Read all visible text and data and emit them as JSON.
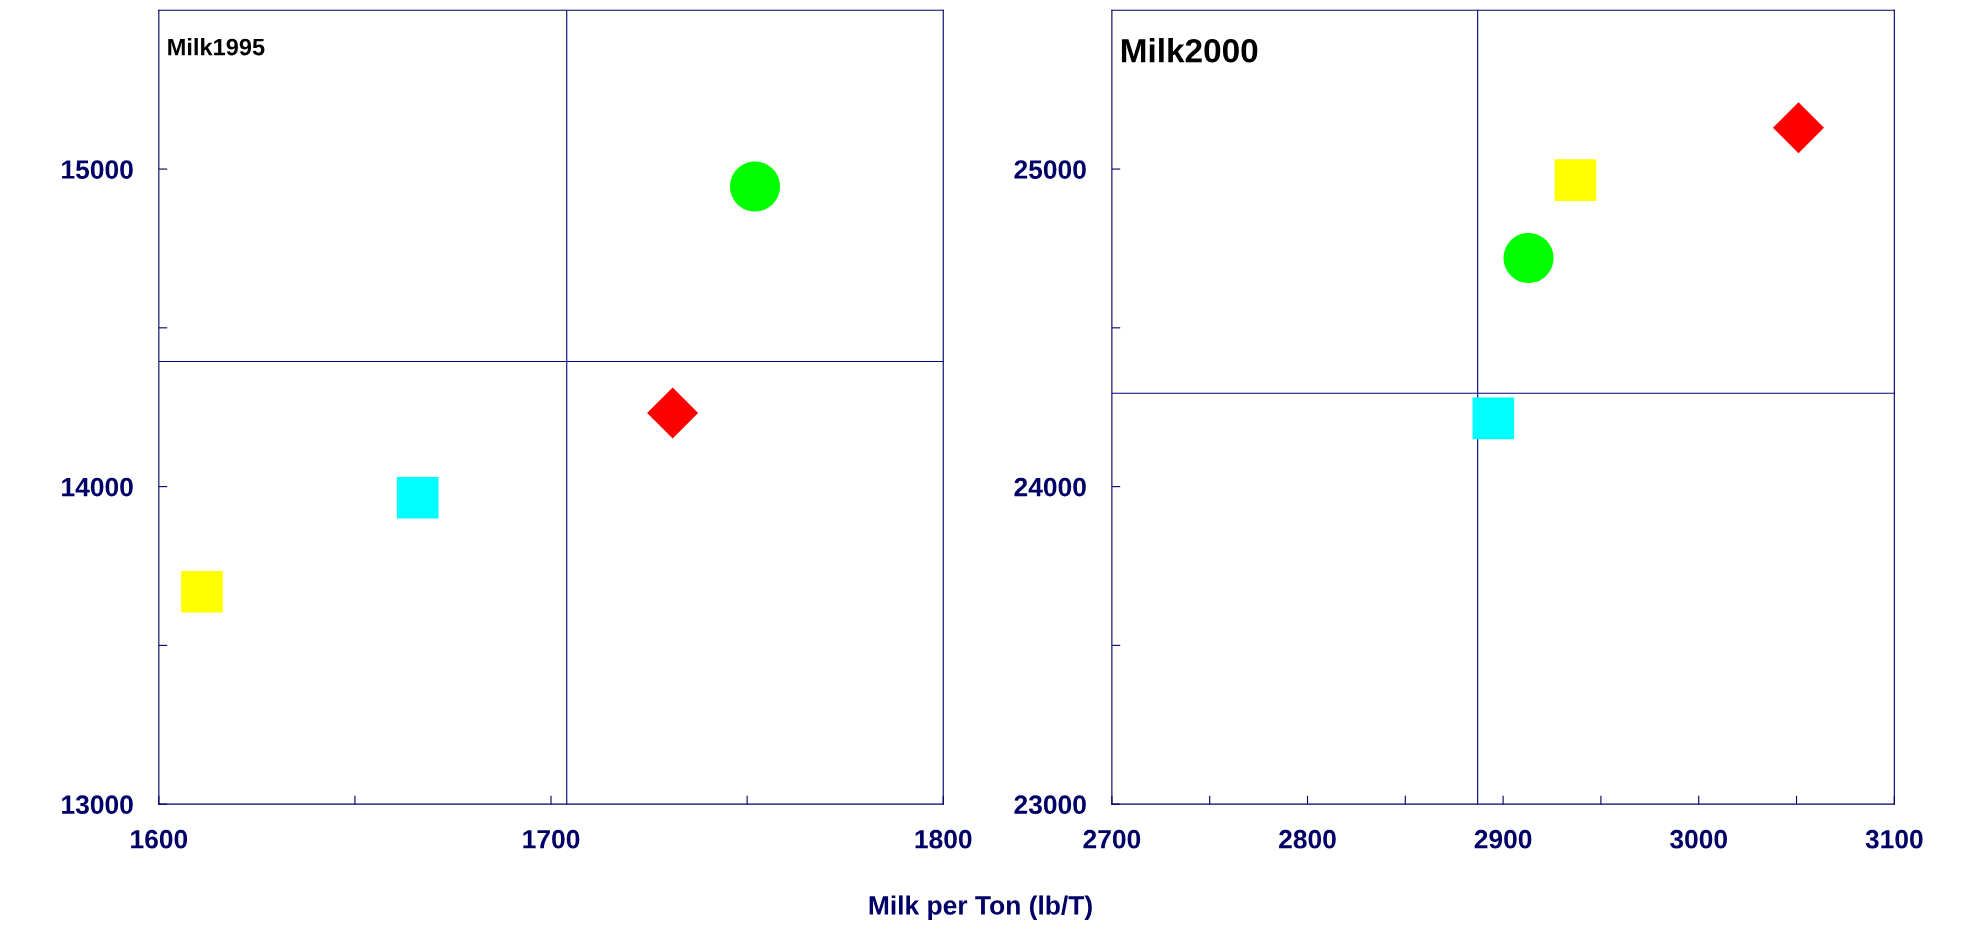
{
  "chart_data": [
    {
      "type": "scatter",
      "title": "Milk1995",
      "xlabel": "Milk per Ton (lb/T)",
      "xlim": [
        1600,
        1800
      ],
      "xticks": [
        1600,
        {
          "value": 1650,
          "label": null
        },
        1700,
        {
          "value": 1750,
          "label": null
        },
        1800
      ],
      "ylim": [
        13000,
        15500
      ],
      "yticks": [
        13000,
        {
          "value": 13500,
          "label": null
        },
        14000,
        {
          "value": 14500,
          "label": null
        },
        15000
      ],
      "ref_lines": [
        {
          "axis": "x",
          "value": 1704,
          "color": "#000080"
        },
        {
          "axis": "y",
          "value": 14394,
          "color": "#000080"
        }
      ],
      "series": [
        {
          "color": "#00ff00",
          "marker": "circle",
          "x": [
            1752
          ],
          "values": [
            14945
          ]
        },
        {
          "color": "#ff0000",
          "marker": "diamond",
          "x": [
            1731
          ],
          "values": [
            14232
          ]
        },
        {
          "color": "#00ffff",
          "marker": "square",
          "x": [
            1666
          ],
          "values": [
            13965
          ]
        },
        {
          "color": "#ffff00",
          "marker": "square",
          "x": [
            1611
          ],
          "values": [
            13669
          ]
        }
      ]
    },
    {
      "type": "scatter",
      "title": "Milk2000",
      "xlim": [
        2700,
        3100
      ],
      "xticks": [
        2700,
        {
          "value": 2750,
          "label": null
        },
        2800,
        {
          "value": 2850,
          "label": null
        },
        2900,
        {
          "value": 2950,
          "label": null
        },
        3000,
        {
          "value": 3050,
          "label": null
        },
        3100
      ],
      "ylim": [
        23000,
        25500
      ],
      "yticks": [
        23000,
        {
          "value": 23500,
          "label": null
        },
        24000,
        {
          "value": 24500,
          "label": null
        },
        25000
      ],
      "ref_lines": [
        {
          "axis": "x",
          "value": 2887,
          "color": "#000080"
        },
        {
          "axis": "y",
          "value": 24294,
          "color": "#000080"
        }
      ],
      "series": [
        {
          "color": "#ff0000",
          "marker": "diamond",
          "x": [
            3051
          ],
          "values": [
            25130
          ]
        },
        {
          "color": "#ffff00",
          "marker": "square",
          "x": [
            2937
          ],
          "values": [
            24965
          ]
        },
        {
          "color": "#00ff00",
          "marker": "circle",
          "x": [
            2913
          ],
          "values": [
            24720
          ]
        },
        {
          "color": "#00ffff",
          "marker": "square",
          "x": [
            2895
          ],
          "values": [
            24215
          ]
        }
      ]
    }
  ]
}
